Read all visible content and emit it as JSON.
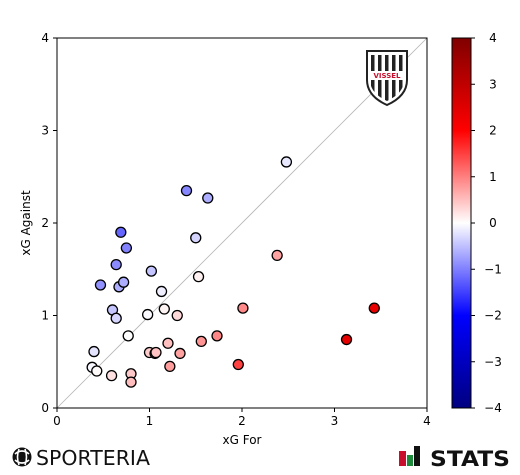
{
  "chart_data": {
    "type": "scatter",
    "xlabel": "xG For",
    "ylabel": "xG Against",
    "xlim": [
      0,
      4
    ],
    "ylim": [
      0,
      4
    ],
    "x_ticks": [
      "0",
      "1",
      "2",
      "3",
      "4"
    ],
    "y_ticks": [
      "0",
      "1",
      "2",
      "3",
      "4"
    ],
    "grid": false,
    "reference_line": "y = x",
    "color_value": "xG For minus xG Against",
    "colorbar": {
      "range": [
        -4,
        4
      ],
      "ticks": [
        "4",
        "3",
        "2",
        "1",
        "0",
        "−1",
        "−2",
        "−3",
        "−4"
      ],
      "colors": [
        "#000080",
        "#0000ff",
        "#ffffff",
        "#ff0000",
        "#800000"
      ]
    },
    "points": [
      {
        "x": 0.38,
        "y": 0.44
      },
      {
        "x": 0.4,
        "y": 0.61
      },
      {
        "x": 0.43,
        "y": 0.4
      },
      {
        "x": 0.47,
        "y": 1.33
      },
      {
        "x": 0.59,
        "y": 0.35
      },
      {
        "x": 0.6,
        "y": 1.06
      },
      {
        "x": 0.64,
        "y": 0.97
      },
      {
        "x": 0.64,
        "y": 1.55
      },
      {
        "x": 0.67,
        "y": 1.31
      },
      {
        "x": 0.69,
        "y": 1.9
      },
      {
        "x": 0.72,
        "y": 1.36
      },
      {
        "x": 0.75,
        "y": 1.73
      },
      {
        "x": 0.77,
        "y": 0.78
      },
      {
        "x": 0.8,
        "y": 0.37
      },
      {
        "x": 0.8,
        "y": 0.28
      },
      {
        "x": 0.98,
        "y": 1.01
      },
      {
        "x": 1.0,
        "y": 0.6
      },
      {
        "x": 1.02,
        "y": 1.48
      },
      {
        "x": 1.06,
        "y": 0.59
      },
      {
        "x": 1.07,
        "y": 0.6
      },
      {
        "x": 1.13,
        "y": 1.26
      },
      {
        "x": 1.16,
        "y": 1.07
      },
      {
        "x": 1.2,
        "y": 0.7
      },
      {
        "x": 1.22,
        "y": 0.45
      },
      {
        "x": 1.3,
        "y": 1.0
      },
      {
        "x": 1.33,
        "y": 0.59
      },
      {
        "x": 1.4,
        "y": 2.35
      },
      {
        "x": 1.5,
        "y": 1.84
      },
      {
        "x": 1.53,
        "y": 1.42
      },
      {
        "x": 1.56,
        "y": 0.72
      },
      {
        "x": 1.63,
        "y": 2.27
      },
      {
        "x": 1.73,
        "y": 0.78
      },
      {
        "x": 1.96,
        "y": 0.47
      },
      {
        "x": 2.01,
        "y": 1.08
      },
      {
        "x": 2.38,
        "y": 1.65
      },
      {
        "x": 2.48,
        "y": 2.66
      },
      {
        "x": 3.13,
        "y": 0.74
      },
      {
        "x": 3.43,
        "y": 1.08
      }
    ]
  },
  "branding": {
    "crest_text": "VISSEL",
    "crest_color": "#c8102e",
    "left_logo": "SPORTERIA",
    "right_logo": "STATS",
    "logo_flag_colors": [
      "#c8102e",
      "#1e8a3c"
    ]
  }
}
